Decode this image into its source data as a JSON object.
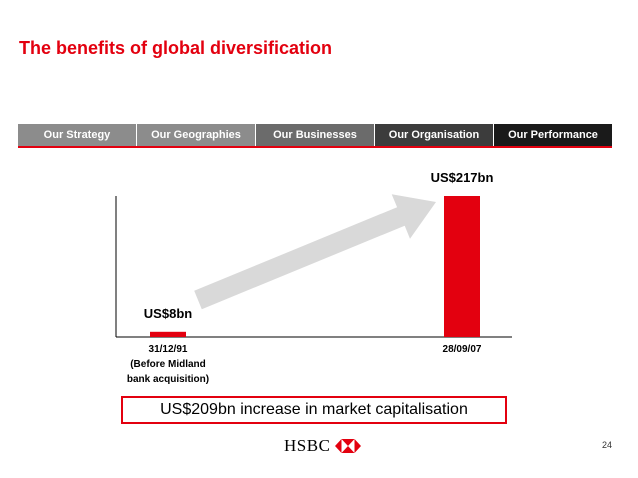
{
  "slide": {
    "title": "The benefits of global diversification",
    "page_number": "24"
  },
  "nav": {
    "tabs": [
      {
        "label": "Our Strategy"
      },
      {
        "label": "Our Geographies"
      },
      {
        "label": "Our Businesses"
      },
      {
        "label": "Our Organisation"
      },
      {
        "label": "Our Performance"
      }
    ]
  },
  "callout": {
    "text": "US$209bn increase in market capitalisation"
  },
  "logo": {
    "text": "HSBC",
    "logo_color": "#e3000f"
  },
  "colors": {
    "accent": "#e3000f",
    "arrow": "#d9d9d9"
  },
  "chart_data": {
    "type": "bar",
    "categories": [
      "31/12/91\n(Before Midland\nbank acquisition)",
      "28/09/07"
    ],
    "values": [
      8,
      217
    ],
    "data_labels": [
      "US$8bn",
      "US$217bn"
    ],
    "bar_color": "#e3000f",
    "ylim": [
      0,
      217
    ],
    "grid": false
  }
}
